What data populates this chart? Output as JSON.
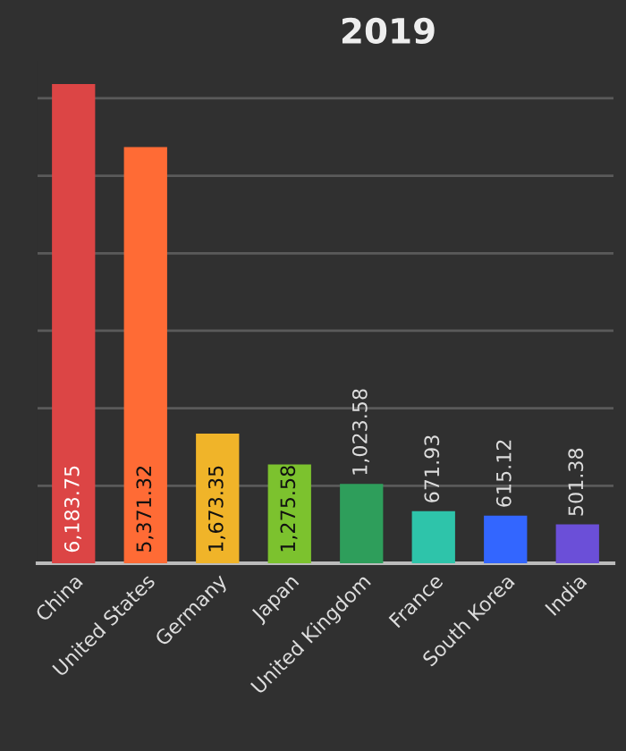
{
  "chart_data": {
    "type": "bar",
    "title": "2019",
    "categories": [
      "China",
      "United States",
      "Germany",
      "Japan",
      "United Kingdom",
      "France",
      "South Korea",
      "India"
    ],
    "values": [
      6183.75,
      5371.32,
      1673.35,
      1275.58,
      1023.58,
      671.93,
      615.12,
      501.38
    ],
    "value_labels": [
      "6,183.75",
      "5,371.32",
      "1,673.35",
      "1,275.58",
      "1,023.58",
      "671.93",
      "615.12",
      "501.38"
    ],
    "colors": [
      "#dc4545",
      "#ff6b35",
      "#f0b429",
      "#7cc22e",
      "#2e9e5b",
      "#2ec4aa",
      "#3366ff",
      "#6b4fd8"
    ],
    "grid": "y"
  }
}
